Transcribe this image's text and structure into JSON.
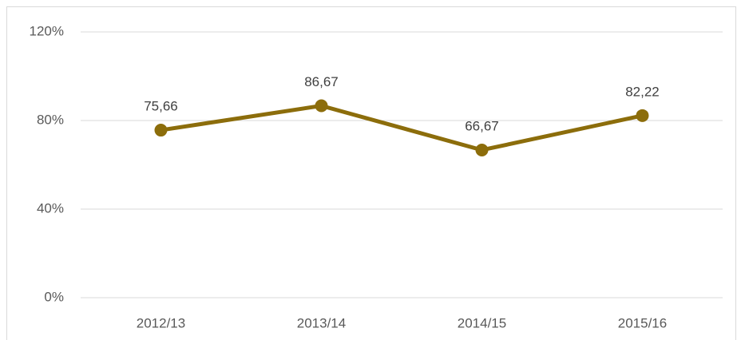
{
  "chart_data": {
    "type": "line",
    "categories": [
      "2012/13",
      "2013/14",
      "2014/15",
      "2015/16"
    ],
    "series": [
      {
        "color": "#8c6d0b",
        "values": [
          75.66,
          86.67,
          66.67,
          82.22
        ],
        "value_labels": [
          "75,66",
          "86,67",
          "66,67",
          "82,22"
        ]
      }
    ],
    "ylim": [
      0,
      120
    ],
    "yticks": [
      {
        "value": 0,
        "label": "0%"
      },
      {
        "value": 40,
        "label": "40%"
      },
      {
        "value": 80,
        "label": "80%"
      },
      {
        "value": 120,
        "label": "120%"
      }
    ],
    "grid": true
  }
}
